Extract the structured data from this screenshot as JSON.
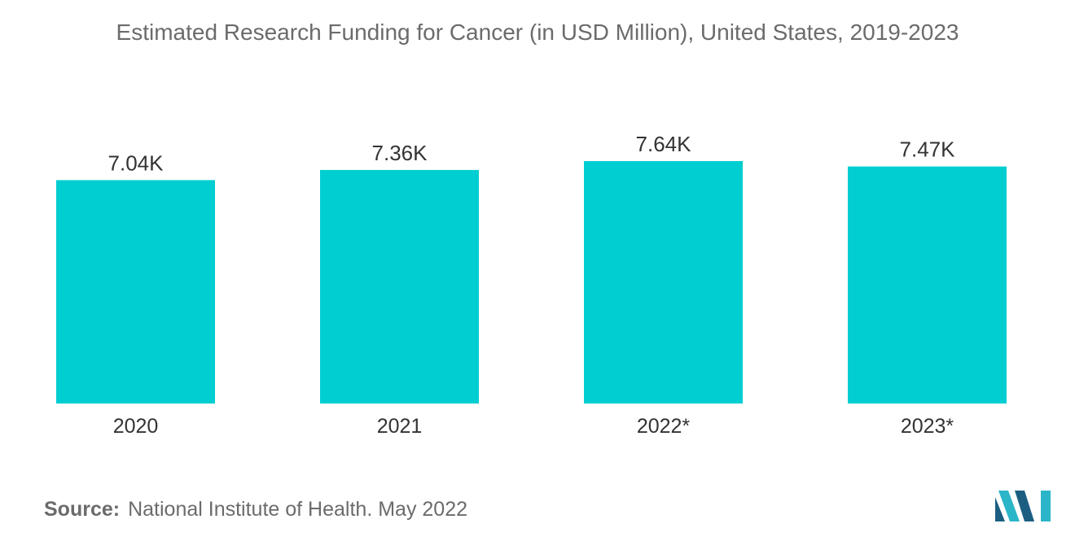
{
  "chart_data": {
    "type": "bar",
    "title": "Estimated Research Funding for Cancer (in USD Million), United States, 2019-2023",
    "categories": [
      "2020",
      "2021",
      "2022*",
      "2023*"
    ],
    "values": [
      7040,
      7360,
      7640,
      7470
    ],
    "data_labels": [
      "7.04K",
      "7.36K",
      "7.64K",
      "7.47K"
    ],
    "xlabel": "",
    "ylabel": "",
    "ylim": [
      0,
      7640
    ],
    "grid": false,
    "bar_color": "#00ced1"
  },
  "source": {
    "label": "Source:",
    "text": "National Institute of Health. May 2022"
  },
  "logo": {
    "icon": "mordor-intelligence-logo-icon",
    "colors": [
      "#1b5e82",
      "#2bb5c9"
    ]
  }
}
